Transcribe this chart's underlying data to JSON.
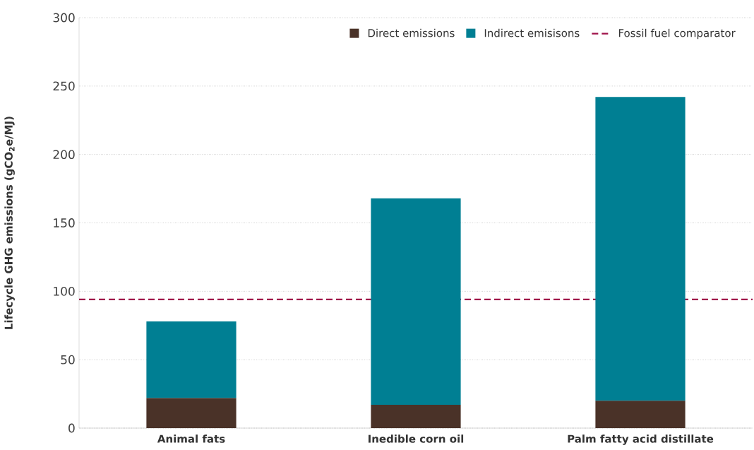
{
  "chart_data": {
    "type": "bar",
    "stacked": true,
    "ylabel": "Lifecycle GHG emissions (gCO$_{2}$e/MJ)",
    "categories": [
      "Animal fats",
      "Inedible corn oil",
      "Palm fatty acid distillate"
    ],
    "series": [
      {
        "name": "Direct emissions",
        "color": "#4a3228",
        "values": [
          22,
          17,
          20
        ]
      },
      {
        "name": "Indirect emisisons",
        "color": "#007f93",
        "values": [
          56,
          151,
          222
        ]
      }
    ],
    "ref_lines": [
      {
        "axis": "y",
        "value": 94,
        "label": "Fossil fuel comparator",
        "color": "#a0134a",
        "line_style": "dashed"
      }
    ],
    "ylim": [
      0,
      300
    ],
    "yticks": [
      0,
      50,
      100,
      150,
      200,
      250,
      300
    ],
    "grid": "y",
    "legend": "top right"
  }
}
